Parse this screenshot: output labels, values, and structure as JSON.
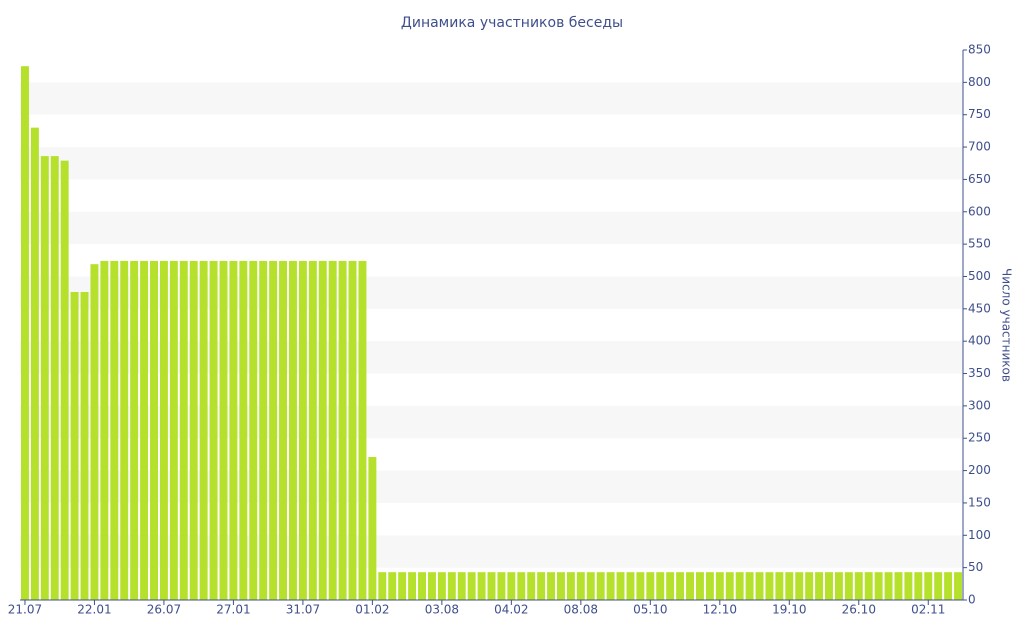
{
  "chart_data": {
    "type": "bar",
    "title": "Динамика участников беседы",
    "y_label": "Число участников",
    "categories": [
      "21.07",
      null,
      null,
      null,
      null,
      null,
      null,
      "22.01",
      null,
      null,
      null,
      null,
      null,
      null,
      "26.07",
      null,
      null,
      null,
      null,
      null,
      null,
      "27.01",
      null,
      null,
      null,
      null,
      null,
      null,
      "31.07",
      null,
      null,
      null,
      null,
      null,
      null,
      "01.02",
      null,
      null,
      null,
      null,
      null,
      null,
      "03.08",
      null,
      null,
      null,
      null,
      null,
      null,
      "04.02",
      null,
      null,
      null,
      null,
      null,
      null,
      "08.08",
      null,
      null,
      null,
      null,
      null,
      null,
      "05.10",
      null,
      null,
      null,
      null,
      null,
      null,
      "12.10",
      null,
      null,
      null,
      null,
      null,
      null,
      "19.10",
      null,
      null,
      null,
      null,
      null,
      null,
      "26.10",
      null,
      null,
      null,
      null,
      null,
      null,
      "02.11",
      null,
      null,
      null
    ],
    "values": [
      825,
      730,
      686,
      686,
      679,
      476,
      476,
      519,
      524,
      524,
      524,
      524,
      524,
      524,
      524,
      524,
      524,
      524,
      524,
      524,
      524,
      524,
      524,
      524,
      524,
      524,
      524,
      524,
      524,
      524,
      524,
      524,
      524,
      524,
      524,
      221,
      43,
      43,
      43,
      43,
      43,
      43,
      43,
      43,
      43,
      43,
      43,
      43,
      43,
      43,
      43,
      43,
      43,
      43,
      43,
      43,
      43,
      43,
      43,
      43,
      43,
      43,
      43,
      43,
      43,
      43,
      43,
      43,
      43,
      43,
      43,
      43,
      43,
      43,
      43,
      43,
      43,
      43,
      43,
      43,
      43,
      43,
      43,
      43,
      43,
      43,
      43,
      43,
      43,
      43,
      43,
      43,
      43,
      43,
      43
    ],
    "color": "#b5e02c",
    "ylim": [
      0,
      850
    ],
    "yticks": [
      0,
      50,
      100,
      150,
      200,
      250,
      300,
      350,
      400,
      450,
      500,
      550,
      600,
      650,
      700,
      750,
      800,
      850
    ],
    "y_axis_side": "right",
    "grid": true
  }
}
